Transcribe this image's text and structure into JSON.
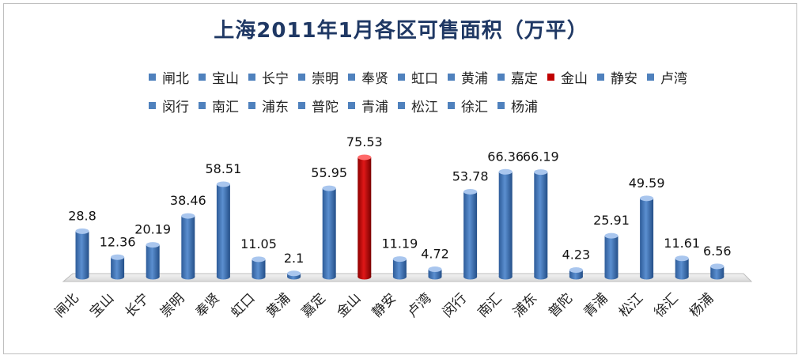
{
  "chart_data": {
    "type": "bar",
    "title": "上海2011年1月各区可售面积（万平）",
    "categories": [
      "闸北",
      "宝山",
      "长宁",
      "崇明",
      "奉贤",
      "虹口",
      "黄浦",
      "嘉定",
      "金山",
      "静安",
      "卢湾",
      "闵行",
      "南汇",
      "浦东",
      "普陀",
      "青浦",
      "松江",
      "徐汇",
      "杨浦"
    ],
    "values": [
      28.8,
      12.36,
      20.19,
      38.46,
      58.51,
      11.05,
      2.1,
      55.95,
      75.53,
      11.19,
      4.72,
      53.78,
      66.36,
      66.19,
      4.23,
      25.91,
      49.59,
      11.61,
      6.56
    ],
    "value_labels": [
      "28.8",
      "12.36",
      "20.19",
      "38.46",
      "58.51",
      "11.05",
      "2.1",
      "55.95",
      "75.53",
      "11.19",
      "4.72",
      "53.78",
      "66.36",
      "66.19",
      "4.23",
      "25.91",
      "49.59",
      "11.61",
      "6.56"
    ],
    "ylim": [
      0,
      80
    ],
    "grid": false,
    "legend_position": "top",
    "highlight_category": "金山",
    "colors": {
      "default": "#4f81bd",
      "highlight": "#c00000",
      "title": "#1f3864"
    }
  }
}
